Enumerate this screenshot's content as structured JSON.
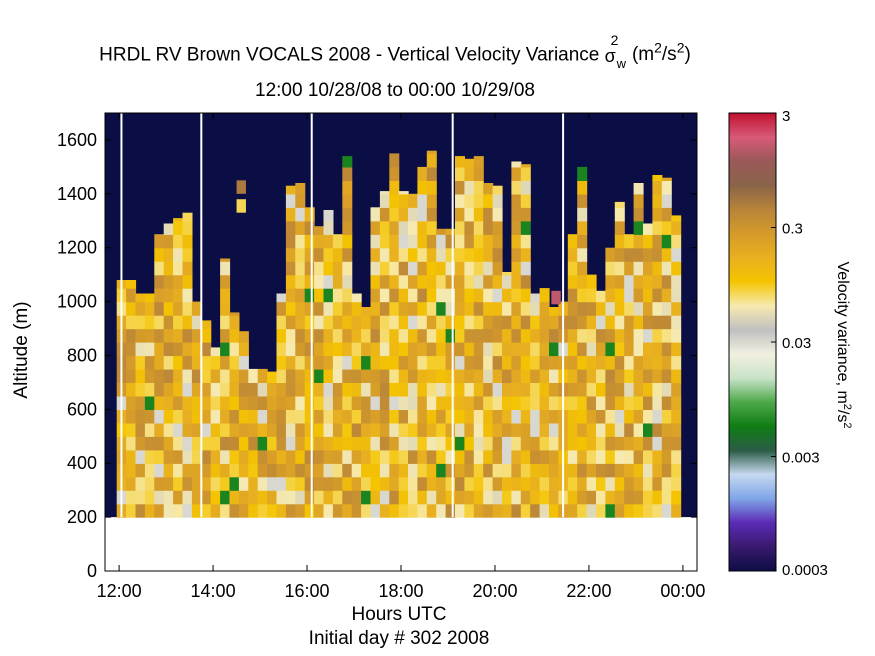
{
  "title": {
    "line1_prefix": "HRDL RV Brown VOCALS 2008 - Vertical Velocity Variance",
    "sigma_symbol": "σ",
    "sigma_sub": "w",
    "sigma_sup": "2",
    "units_open": "(m",
    "units_sup1": "2",
    "units_mid": "/s",
    "units_sup2": "2",
    "units_close": ")",
    "line2": "12:00 10/28/08 to 00:00 10/29/08"
  },
  "axes": {
    "xlabel": "Hours UTC",
    "footer": "Initial day # 302  2008",
    "ylabel": "Altitude (m)"
  },
  "colorbar": {
    "label_prefix": "Velocity variance, m",
    "label_sup1": "2",
    "label_mid": "/s",
    "label_sup2": "2",
    "tick_labels": [
      "3",
      "0.3",
      "0.03",
      "0.003",
      "0.0003"
    ],
    "scale": "log",
    "range": [
      0.0003,
      3
    ],
    "colormap": [
      "#0b0d45",
      "#3a1a6e",
      "#5b2bb5",
      "#7fa6e8",
      "#c7d8f0",
      "#2b5c46",
      "#0f7d14",
      "#4da84a",
      "#c8e3c8",
      "#f2f0e0",
      "#c0c0c0",
      "#f7eab0",
      "#f4c400",
      "#e8b020",
      "#d49a2a",
      "#b8843a",
      "#8a6448",
      "#9a5858",
      "#d85a78",
      "#c01030"
    ]
  },
  "chart_data": {
    "type": "heatmap",
    "xlabel": "Hours UTC",
    "ylabel": "Altitude (m)",
    "x_ticks": [
      "12:00",
      "14:00",
      "16:00",
      "18:00",
      "20:00",
      "22:00",
      "00:00"
    ],
    "x_tick_hours": [
      12,
      14,
      16,
      18,
      20,
      22,
      24
    ],
    "xlim": [
      11.7,
      24.3
    ],
    "y_ticks": [
      0,
      200,
      400,
      600,
      800,
      1000,
      1200,
      1400,
      1600
    ],
    "ylim": [
      0,
      1700
    ],
    "grid": false,
    "background_color": "#0b0d45",
    "valid_altitude_min": 200,
    "bin_width_hours": 0.2,
    "bin_height_m": 50,
    "column_top_altitudes_m": [
      1080,
      1080,
      1030,
      1030,
      1250,
      1290,
      1310,
      1330,
      1000,
      930,
      830,
      1160,
      960,
      890,
      750,
      750,
      740,
      1030,
      1430,
      1440,
      1350,
      1280,
      1340,
      1250,
      1540,
      1030,
      980,
      1350,
      1410,
      1550,
      1410,
      1400,
      1500,
      1560,
      1270,
      1270,
      1540,
      1530,
      1540,
      1440,
      1430,
      1110,
      1520,
      1510,
      1030,
      1050,
      980,
      1000,
      1250,
      1500,
      1100,
      1040,
      1200,
      1370,
      1250,
      1440,
      1290,
      1470,
      1460,
      1320
    ],
    "isolated_cells": [
      {
        "hour": 14.6,
        "altitude_m": 1400,
        "variance": 0.5
      },
      {
        "hour": 14.6,
        "altitude_m": 1330,
        "variance": 0.08
      },
      {
        "hour": 21.3,
        "altitude_m": 990,
        "variance": 1.5
      }
    ],
    "data_gaps_hours": [
      12.05,
      13.75,
      16.1,
      19.1,
      21.45
    ],
    "typical_variance_range": [
      0.05,
      0.4
    ]
  }
}
